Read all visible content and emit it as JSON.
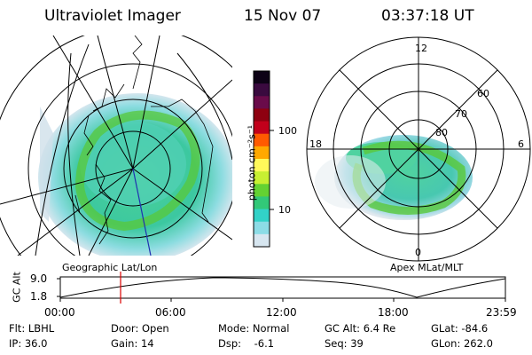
{
  "header": {
    "title": "Ultraviolet Imager",
    "date": "15 Nov 07",
    "time": "03:37:18 UT"
  },
  "colorbar": {
    "unit": "photon cm⁻²s⁻¹",
    "ticks": [
      "100",
      "10"
    ],
    "colors": [
      "#0d0216",
      "#3a0a3f",
      "#6a0b4a",
      "#8e0010",
      "#c2001b",
      "#ff5a00",
      "#ffa800",
      "#fff95a",
      "#c8f032",
      "#64d232",
      "#32c878",
      "#32d2c8",
      "#8cdce6",
      "#d7e6f0"
    ]
  },
  "geo_panel": {
    "caption": "Geographic Lat/Lon"
  },
  "polar_panel": {
    "caption": "Apex MLat/MLT",
    "mlt_labels": [
      "12",
      "18",
      "6",
      "0"
    ],
    "lat_labels": [
      "60",
      "70",
      "80"
    ]
  },
  "altitude_strip": {
    "ylabel": "GC Alt",
    "yticks": [
      "9.0",
      "1.8"
    ],
    "xticks": [
      "00:00",
      "06:00",
      "12:00",
      "18:00",
      "23:59"
    ]
  },
  "info": {
    "row1": {
      "flt": "Flt: LBHL",
      "door": "Door: Open",
      "mode": "Mode: Normal",
      "gcalt": "GC Alt: 6.4 Re",
      "glat": "GLat: -84.6"
    },
    "row2": {
      "ip": "IP: 36.0",
      "gain": "Gain: 14",
      "dsp": "Dsp:    -6.1",
      "seq": "Seq: 39",
      "glon": "GLon: 262.0"
    }
  }
}
